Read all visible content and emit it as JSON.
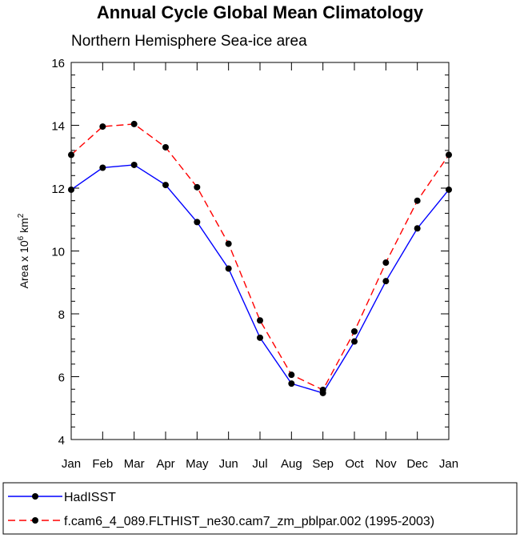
{
  "chart_data": {
    "type": "line",
    "title": "Annual Cycle Global Mean Climatology",
    "subtitle": "Northern Hemisphere Sea-ice area",
    "ylabel": "Area x 10^6 km^2",
    "ylabel_prefix": "Area x 10",
    "ylabel_exp1": "6",
    "ylabel_mid": " km",
    "ylabel_exp2": "2",
    "categories": [
      "Jan",
      "Feb",
      "Mar",
      "Apr",
      "May",
      "Jun",
      "Jul",
      "Aug",
      "Sep",
      "Oct",
      "Nov",
      "Dec",
      "Jan"
    ],
    "ylim": [
      4,
      16
    ],
    "yticks": [
      "4",
      "6",
      "8",
      "10",
      "12",
      "14",
      "16"
    ],
    "series": [
      {
        "name": "HadISST",
        "color": "#0000ff",
        "dash": "solid",
        "values": [
          11.95,
          12.65,
          12.74,
          12.1,
          10.92,
          9.44,
          7.24,
          5.78,
          5.48,
          7.12,
          9.04,
          10.72,
          11.95
        ]
      },
      {
        "name": "f.cam6_4_089.FLTHIST_ne30.cam7_zm_pblpar.002 (1995-2003)",
        "color": "#ff0000",
        "dash": "dashed",
        "values": [
          13.06,
          13.96,
          14.04,
          13.3,
          12.03,
          10.23,
          7.79,
          6.06,
          5.58,
          7.44,
          9.63,
          11.6,
          13.06
        ]
      }
    ],
    "legend_position": "bottom"
  }
}
